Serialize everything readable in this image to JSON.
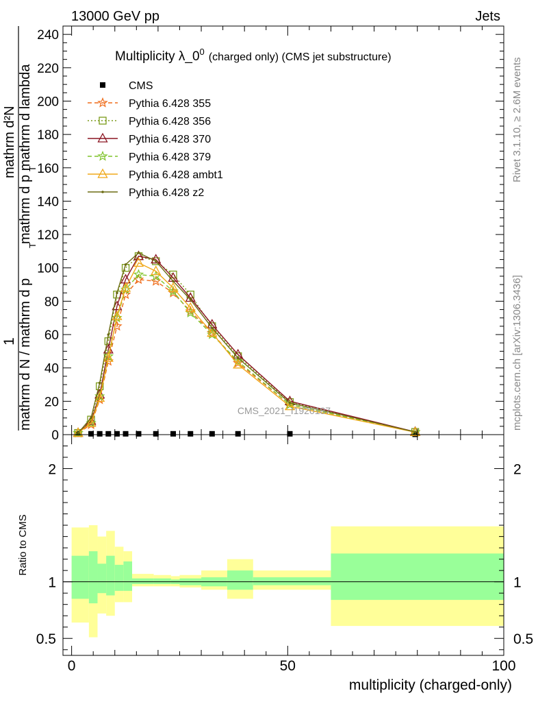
{
  "header": {
    "left": "13000 GeV pp",
    "right": "Jets"
  },
  "side": {
    "rivet": "Rivet 3.1.10, ≥ 2.6M events",
    "mcplots": "mcplots.cern.ch [arXiv:1306.3436]"
  },
  "chart_data": [
    {
      "type": "line",
      "title_main": "Multiplicity λ_0",
      "title_sup": "0",
      "title_sub": "(charged only) (CMS jet substructure)",
      "ylabel_numerator": "1",
      "ylabel_denominator": "mathrm d N / mathrm d p",
      "ylabel_numerator_right": "mathrm d²N",
      "ylabel_denominator_right": "mathrm d p  mathrm d lambda",
      "ylabel_sub": "T",
      "watermark": "CMS_2021_I1920187",
      "xlim": [
        -2,
        100
      ],
      "ylim": [
        0,
        245
      ],
      "x_ticks": [
        0,
        50,
        100
      ],
      "y_ticks": [
        0,
        20,
        40,
        60,
        80,
        100,
        120,
        140,
        160,
        180,
        200,
        220,
        240
      ],
      "x": [
        1.5,
        4.5,
        6.5,
        8.5,
        10.5,
        12.5,
        15.5,
        19.5,
        23.5,
        27.5,
        32.5,
        38.5,
        50.5,
        79.5
      ],
      "series": [
        {
          "name": "CMS",
          "color": "#000000",
          "style": "data",
          "marker": "square",
          "values": [
            0.5,
            0.5,
            0.5,
            0.5,
            0.5,
            0.5,
            0.5,
            0.5,
            0.5,
            0.5,
            0.5,
            0.5,
            0.5,
            0.2
          ]
        },
        {
          "name": "Pythia 6.428 355",
          "color": "#ef6c1a",
          "style": "dashed",
          "marker": "star",
          "values": [
            1.0,
            6.0,
            21.0,
            44.0,
            65.0,
            84.0,
            93.0,
            92.0,
            85.0,
            74.0,
            61.0,
            43.0,
            18.0,
            1.5
          ]
        },
        {
          "name": "Pythia 6.428 356",
          "color": "#7a9a18",
          "style": "dotted",
          "marker": "square-open",
          "values": [
            1.0,
            9.0,
            29.0,
            56.0,
            84.0,
            100.0,
            107.0,
            104.0,
            96.0,
            84.0,
            65.0,
            47.0,
            19.5,
            1.6
          ]
        },
        {
          "name": "Pythia 6.428 370",
          "color": "#8a1420",
          "style": "solid",
          "marker": "triangle-open",
          "values": [
            1.0,
            8.0,
            24.0,
            51.0,
            77.0,
            93.0,
            107.0,
            105.0,
            94.0,
            82.0,
            66.0,
            48.0,
            20.0,
            1.7
          ]
        },
        {
          "name": "Pythia 6.428 379",
          "color": "#7fc42a",
          "style": "dashed",
          "marker": "star",
          "values": [
            1.0,
            7.0,
            23.0,
            47.0,
            70.0,
            87.0,
            96.0,
            95.0,
            86.0,
            73.0,
            60.0,
            44.0,
            18.0,
            1.5
          ]
        },
        {
          "name": "Pythia 6.428 ambt1",
          "color": "#f0a818",
          "style": "solid",
          "marker": "triangle-open",
          "values": [
            1.0,
            7.0,
            22.0,
            46.0,
            71.0,
            88.0,
            103.0,
            98.0,
            88.0,
            76.0,
            61.0,
            42.0,
            17.0,
            1.5
          ]
        },
        {
          "name": "Pythia 6.428 z2",
          "color": "#6b6b12",
          "style": "solid",
          "marker": "dot",
          "values": [
            1.0,
            10.0,
            31.0,
            60.0,
            85.0,
            102.0,
            109.0,
            104.0,
            92.0,
            81.0,
            64.0,
            46.0,
            19.0,
            1.6
          ]
        }
      ],
      "legend_placement": "top-left"
    },
    {
      "type": "area",
      "ylabel": "Ratio to CMS",
      "xlabel": "multiplicity (charged-only)",
      "xlim": [
        -2,
        100
      ],
      "ylim": [
        0.35,
        2.3
      ],
      "y_ticks": [
        0.5,
        1,
        2
      ],
      "y_tick_labels": [
        "0.5",
        "1",
        "2"
      ],
      "x_ticks": [
        0,
        50,
        100
      ],
      "reference_line": 1.0,
      "bands": [
        {
          "x0": 0,
          "x1": 4,
          "inner": [
            0.85,
            1.23
          ],
          "outer": [
            0.64,
            1.48
          ]
        },
        {
          "x0": 4,
          "x1": 6,
          "inner": [
            0.81,
            1.27
          ],
          "outer": [
            0.51,
            1.5
          ]
        },
        {
          "x0": 6,
          "x1": 8,
          "inner": [
            0.9,
            1.16
          ],
          "outer": [
            0.72,
            1.4
          ]
        },
        {
          "x0": 8,
          "x1": 10,
          "inner": [
            0.88,
            1.23
          ],
          "outer": [
            0.7,
            1.45
          ]
        },
        {
          "x0": 10,
          "x1": 12,
          "inner": [
            0.92,
            1.15
          ],
          "outer": [
            0.82,
            1.31
          ]
        },
        {
          "x0": 12,
          "x1": 14,
          "inner": [
            0.92,
            1.18
          ],
          "outer": [
            0.82,
            1.27
          ]
        },
        {
          "x0": 14,
          "x1": 19,
          "inner": [
            0.98,
            1.03
          ],
          "outer": [
            0.96,
            1.07
          ]
        },
        {
          "x0": 19,
          "x1": 23,
          "inner": [
            0.98,
            1.03
          ],
          "outer": [
            0.96,
            1.06
          ]
        },
        {
          "x0": 23,
          "x1": 25,
          "inner": [
            0.98,
            1.02
          ],
          "outer": [
            0.96,
            1.05
          ]
        },
        {
          "x0": 25,
          "x1": 30,
          "inner": [
            0.97,
            1.03
          ],
          "outer": [
            0.95,
            1.06
          ]
        },
        {
          "x0": 30,
          "x1": 36,
          "inner": [
            0.96,
            1.04
          ],
          "outer": [
            0.93,
            1.1
          ]
        },
        {
          "x0": 36,
          "x1": 42,
          "inner": [
            0.93,
            1.1
          ],
          "outer": [
            0.85,
            1.2
          ]
        },
        {
          "x0": 42,
          "x1": 60,
          "inner": [
            0.97,
            1.04
          ],
          "outer": [
            0.93,
            1.1
          ]
        },
        {
          "x0": 60,
          "x1": 100,
          "inner": [
            0.84,
            1.25
          ],
          "outer": [
            0.61,
            1.49
          ]
        }
      ],
      "band_colors": {
        "inner": "#99ff99",
        "outer": "#ffff99"
      }
    }
  ]
}
